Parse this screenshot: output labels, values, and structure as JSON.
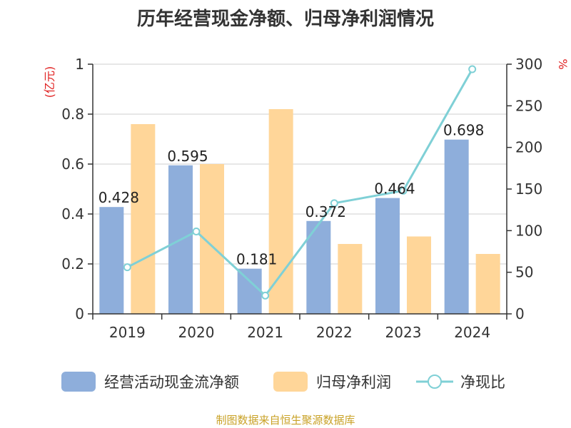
{
  "title": "历年经营现金净额、归母净利润情况",
  "source": "制图数据来自恒生聚源数据库",
  "chart_data": {
    "type": "bar+line",
    "categories": [
      "2019",
      "2020",
      "2021",
      "2022",
      "2023",
      "2024"
    ],
    "left_axis": {
      "unit": "(亿元)",
      "ylim": [
        0,
        1
      ],
      "ticks": [
        "0",
        "0.2",
        "0.4",
        "0.6",
        "0.8",
        "1"
      ]
    },
    "right_axis": {
      "unit": "%",
      "ylim": [
        0,
        300
      ],
      "ticks": [
        "0",
        "50",
        "100",
        "150",
        "200",
        "250",
        "300"
      ]
    },
    "series": [
      {
        "name": "经营活动现金流净额",
        "type": "bar",
        "axis": "left",
        "color": "#8eaedb",
        "values": [
          0.428,
          0.595,
          0.181,
          0.372,
          0.464,
          0.698
        ],
        "labels": [
          "0.428",
          "0.595",
          "0.181",
          "0.372",
          "0.464",
          "0.698"
        ]
      },
      {
        "name": "归母净利润",
        "type": "bar",
        "axis": "left",
        "color": "#ffd699",
        "values": [
          0.76,
          0.6,
          0.82,
          0.28,
          0.31,
          0.24
        ]
      },
      {
        "name": "净现比",
        "type": "line",
        "axis": "right",
        "color": "#7fd0d6",
        "values": [
          56,
          99,
          22,
          133,
          148,
          294
        ]
      }
    ],
    "grid": true,
    "legend": "bottom"
  }
}
